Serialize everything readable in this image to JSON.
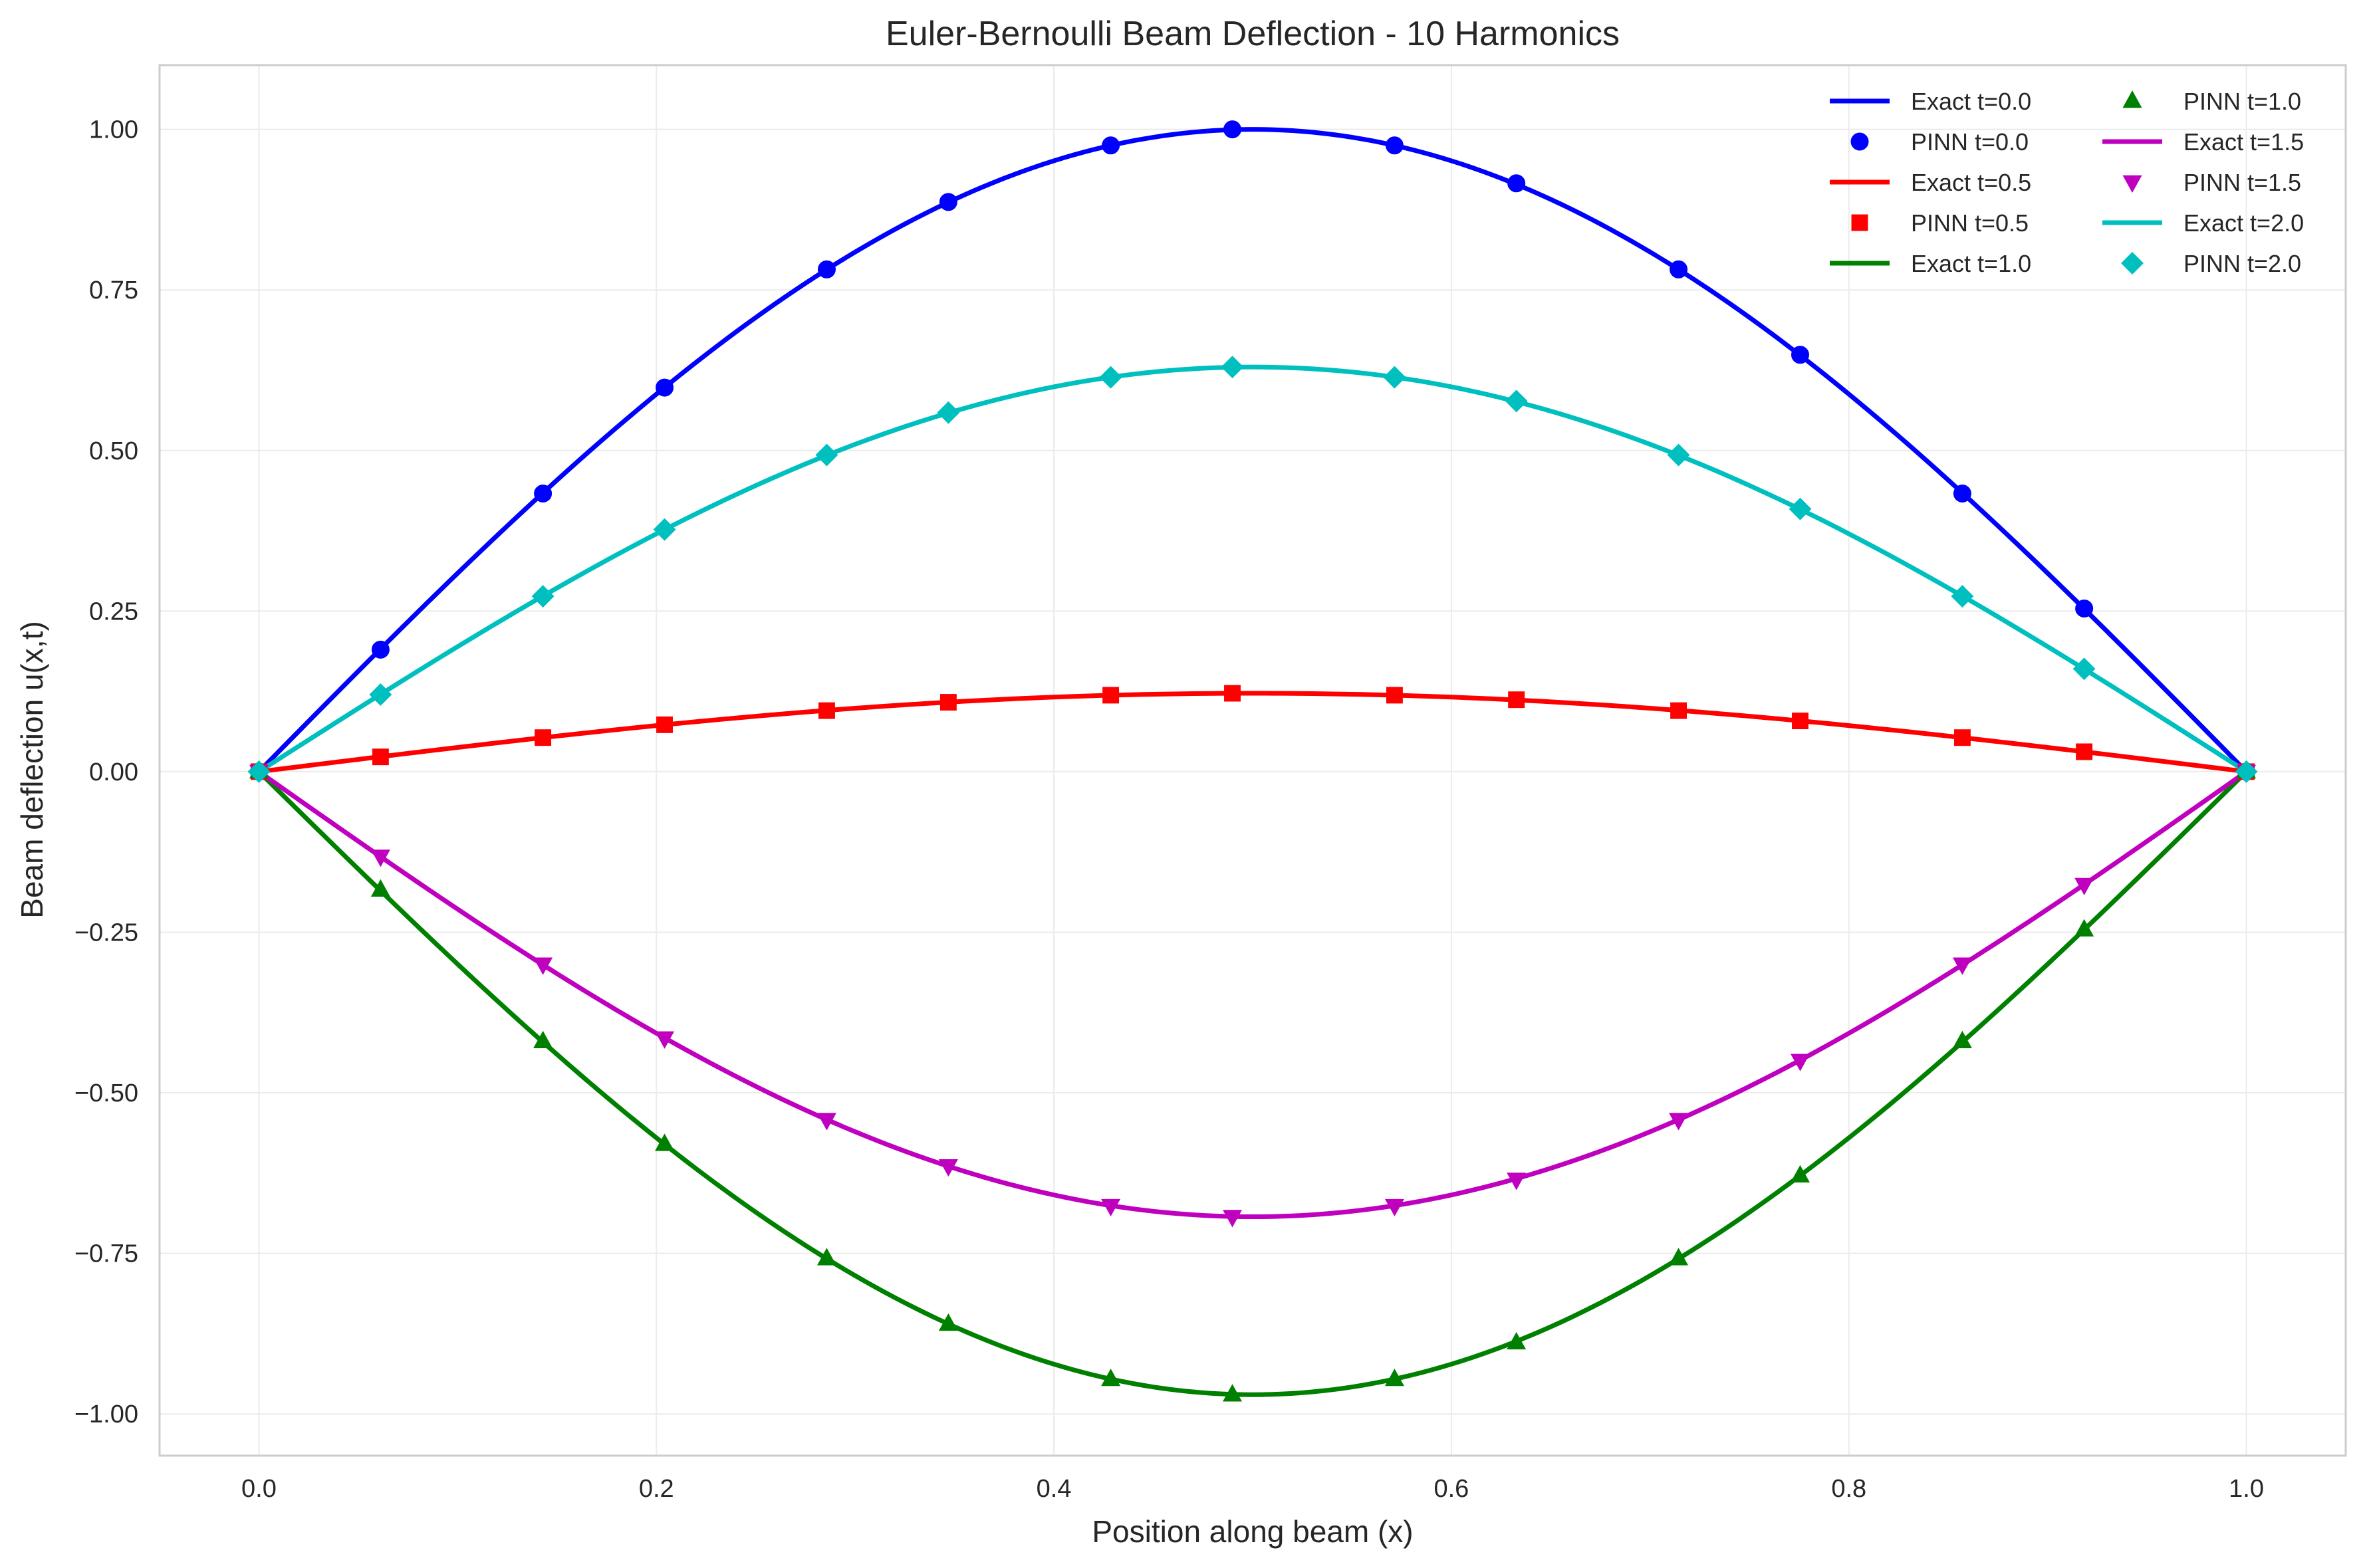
{
  "chart_data": {
    "type": "line",
    "title": "Euler-Bernoulli Beam Deflection - 10 Harmonics",
    "xlabel": "Position along beam (x)",
    "ylabel": "Beam deflection u(x,t)",
    "xlim": [
      -0.05,
      1.05
    ],
    "ylim": [
      -1.065,
      1.1
    ],
    "xticks": [
      0.0,
      0.2,
      0.4,
      0.6,
      0.8,
      1.0
    ],
    "xtick_labels": [
      "0.0",
      "0.2",
      "0.4",
      "0.6",
      "0.8",
      "1.0"
    ],
    "yticks": [
      1.0,
      0.75,
      0.5,
      0.25,
      0.0,
      -0.25,
      -0.5,
      -0.75,
      -1.0
    ],
    "ytick_labels": [
      "1.00",
      "0.75",
      "0.50",
      "0.25",
      "0.00",
      "−0.25",
      "−0.50",
      "−0.75",
      "−1.00"
    ],
    "grid": true,
    "legend_position": "top-right",
    "legend_columns": 2,
    "pinn_x": [
      0.0,
      0.0612,
      0.1429,
      0.2041,
      0.2857,
      0.3469,
      0.4286,
      0.4898,
      0.5714,
      0.6327,
      0.7143,
      0.7755,
      0.8571,
      0.9184,
      1.0
    ],
    "series": [
      {
        "name": "Exact t=0.0",
        "kind": "line",
        "color": "#0000ff",
        "amplitude": 1.0
      },
      {
        "name": "PINN t=0.0",
        "kind": "marker",
        "marker": "circle",
        "color": "#0000ff",
        "y": [
          0.0,
          0.19,
          0.433,
          0.598,
          0.782,
          0.887,
          0.975,
          1.0,
          0.975,
          0.916,
          0.782,
          0.649,
          0.433,
          0.254,
          0.0
        ]
      },
      {
        "name": "Exact t=0.5",
        "kind": "line",
        "color": "#ff0000",
        "amplitude": 0.122
      },
      {
        "name": "PINN t=0.5",
        "kind": "marker",
        "marker": "square",
        "color": "#ff0000",
        "y": [
          0.0,
          0.023,
          0.053,
          0.073,
          0.095,
          0.108,
          0.119,
          0.122,
          0.119,
          0.112,
          0.095,
          0.079,
          0.053,
          0.031,
          0.0
        ]
      },
      {
        "name": "Exact t=1.0",
        "kind": "line",
        "color": "#008000",
        "amplitude": -0.97
      },
      {
        "name": "PINN t=1.0",
        "kind": "marker",
        "marker": "triangle-up",
        "color": "#008000",
        "y": [
          0.0,
          -0.184,
          -0.42,
          -0.58,
          -0.758,
          -0.86,
          -0.946,
          -0.97,
          -0.946,
          -0.889,
          -0.758,
          -0.629,
          -0.42,
          -0.246,
          0.0
        ]
      },
      {
        "name": "Exact t=1.5",
        "kind": "line",
        "color": "#bf00bf",
        "amplitude": -0.693
      },
      {
        "name": "PINN t=1.5",
        "kind": "marker",
        "marker": "triangle-down",
        "color": "#bf00bf",
        "y": [
          0.0,
          -0.132,
          -0.3,
          -0.415,
          -0.542,
          -0.614,
          -0.676,
          -0.693,
          -0.676,
          -0.635,
          -0.542,
          -0.45,
          -0.3,
          -0.176,
          0.0
        ]
      },
      {
        "name": "Exact t=2.0",
        "kind": "line",
        "color": "#00bfbf",
        "amplitude": 0.63
      },
      {
        "name": "PINN t=2.0",
        "kind": "marker",
        "marker": "diamond",
        "color": "#00bfbf",
        "y": [
          0.0,
          0.12,
          0.273,
          0.377,
          0.493,
          0.559,
          0.614,
          0.63,
          0.614,
          0.577,
          0.493,
          0.409,
          0.273,
          0.16,
          0.0
        ]
      }
    ]
  }
}
